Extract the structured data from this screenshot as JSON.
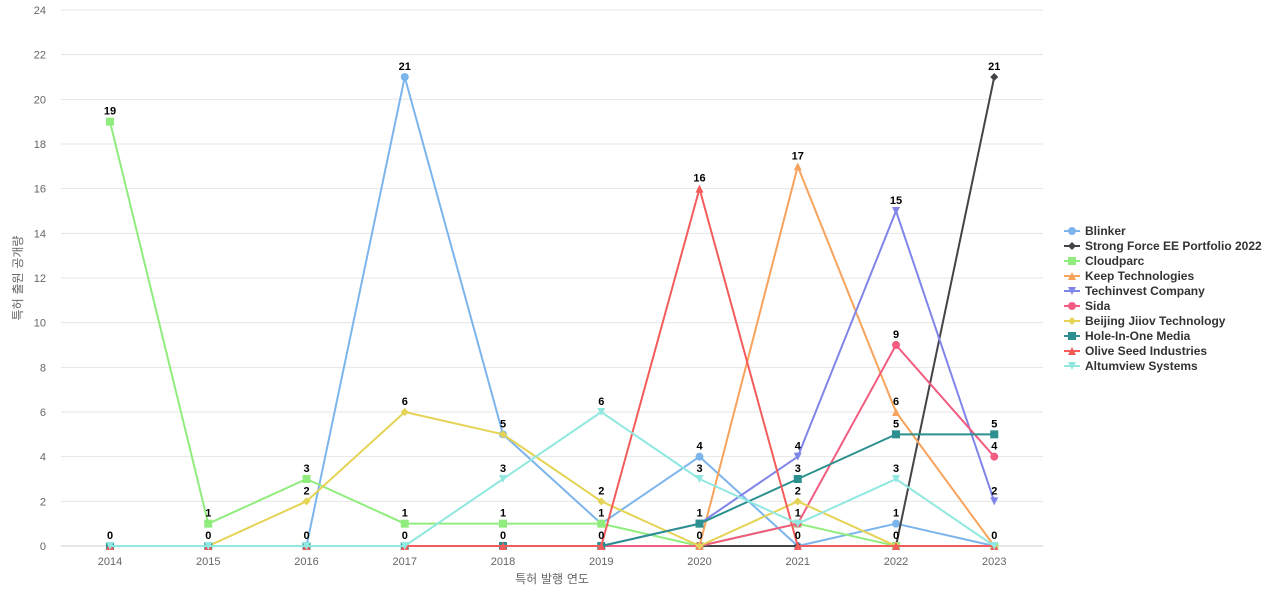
{
  "chart_data": {
    "type": "line",
    "title": "",
    "xlabel": "특허 발행 연도",
    "ylabel": "특허 출원 공개량",
    "ylim": [
      0,
      24
    ],
    "yticks": [
      0,
      2,
      4,
      6,
      8,
      10,
      12,
      14,
      16,
      18,
      20,
      22,
      24
    ],
    "grid": true,
    "legend_position": "right",
    "x": [
      "2014",
      "2015",
      "2016",
      "2017",
      "2018",
      "2019",
      "2020",
      "2021",
      "2022",
      "2023"
    ],
    "series": [
      {
        "name": "Blinker",
        "color": "#7cb5ec",
        "marker": "circle",
        "values": [
          0,
          0,
          0,
          21,
          5,
          1,
          4,
          0,
          1,
          0
        ]
      },
      {
        "name": "Strong Force EE Portfolio 2022",
        "color": "#434348",
        "marker": "diamond",
        "values": [
          0,
          0,
          0,
          0,
          0,
          0,
          0,
          0,
          0,
          21
        ]
      },
      {
        "name": "Cloudparc",
        "color": "#90ed7d",
        "marker": "square",
        "values": [
          19,
          1,
          3,
          1,
          1,
          1,
          0,
          1,
          0,
          0
        ]
      },
      {
        "name": "Keep Technologies",
        "color": "#f7a35c",
        "marker": "triangle",
        "values": [
          0,
          0,
          0,
          0,
          0,
          0,
          0,
          17,
          6,
          0
        ]
      },
      {
        "name": "Techinvest Company",
        "color": "#8085e9",
        "marker": "triangle-down",
        "values": [
          0,
          0,
          0,
          0,
          0,
          0,
          1,
          4,
          15,
          2
        ]
      },
      {
        "name": "Sida",
        "color": "#f15c80",
        "marker": "circle",
        "values": [
          0,
          0,
          0,
          0,
          0,
          0,
          0,
          1,
          9,
          4
        ]
      },
      {
        "name": "Beijing Jiiov Technology",
        "color": "#e4d354",
        "marker": "diamond",
        "values": [
          0,
          0,
          2,
          6,
          5,
          2,
          0,
          2,
          0,
          0
        ]
      },
      {
        "name": "Hole-In-One Media",
        "color": "#2b908f",
        "marker": "square",
        "values": [
          0,
          0,
          0,
          0,
          0,
          0,
          1,
          3,
          5,
          5
        ]
      },
      {
        "name": "Olive Seed Industries",
        "color": "#f45b5b",
        "marker": "triangle",
        "values": [
          0,
          0,
          0,
          0,
          0,
          0,
          16,
          0,
          0,
          0
        ]
      },
      {
        "name": "Altumview Systems",
        "color": "#91e8e1",
        "marker": "triangle-down",
        "values": [
          0,
          0,
          0,
          0,
          3,
          6,
          3,
          1,
          3,
          0
        ]
      }
    ],
    "data_labels": [
      {
        "x": "2014",
        "value": 19
      },
      {
        "x": "2014",
        "value": 0
      },
      {
        "x": "2015",
        "value": 1
      },
      {
        "x": "2015",
        "value": 0
      },
      {
        "x": "2016",
        "value": 3
      },
      {
        "x": "2016",
        "value": 2
      },
      {
        "x": "2016",
        "value": 0
      },
      {
        "x": "2017",
        "value": 21
      },
      {
        "x": "2017",
        "value": 6
      },
      {
        "x": "2017",
        "value": 1
      },
      {
        "x": "2017",
        "value": 0
      },
      {
        "x": "2018",
        "value": 5
      },
      {
        "x": "2018",
        "value": 3
      },
      {
        "x": "2018",
        "value": 1
      },
      {
        "x": "2018",
        "value": 0
      },
      {
        "x": "2019",
        "value": 6
      },
      {
        "x": "2019",
        "value": 2
      },
      {
        "x": "2019",
        "value": 1
      },
      {
        "x": "2019",
        "value": 0
      },
      {
        "x": "2020",
        "value": 16
      },
      {
        "x": "2020",
        "value": 4
      },
      {
        "x": "2020",
        "value": 3
      },
      {
        "x": "2020",
        "value": 1
      },
      {
        "x": "2020",
        "value": 0
      },
      {
        "x": "2021",
        "value": 17
      },
      {
        "x": "2021",
        "value": 4
      },
      {
        "x": "2021",
        "value": 3
      },
      {
        "x": "2021",
        "value": 2
      },
      {
        "x": "2021",
        "value": 1
      },
      {
        "x": "2021",
        "value": 0
      },
      {
        "x": "2022",
        "value": 15
      },
      {
        "x": "2022",
        "value": 9
      },
      {
        "x": "2022",
        "value": 6
      },
      {
        "x": "2022",
        "value": 5
      },
      {
        "x": "2022",
        "value": 3
      },
      {
        "x": "2022",
        "value": 1
      },
      {
        "x": "2022",
        "value": 0
      },
      {
        "x": "2023",
        "value": 21
      },
      {
        "x": "2023",
        "value": 5
      },
      {
        "x": "2023",
        "value": 4
      },
      {
        "x": "2023",
        "value": 2
      },
      {
        "x": "2023",
        "value": 0
      }
    ]
  }
}
